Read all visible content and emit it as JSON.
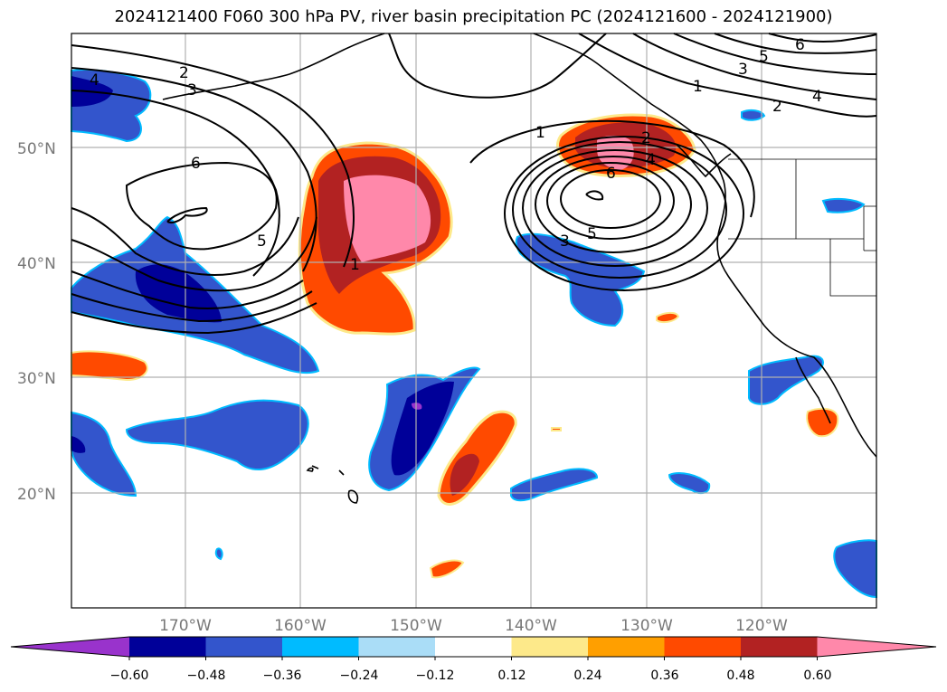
{
  "map": {
    "title": "2024121400 F060 300 hPa PV, river basin precipitation PC (2024121600 - 2024121900)",
    "lat_labels": [
      "50°N",
      "40°N",
      "30°N",
      "20°N"
    ],
    "lon_labels": [
      "170°W",
      "160°W",
      "150°W",
      "140°W",
      "130°W",
      "120°W"
    ],
    "contour_labels": [
      "4",
      "2",
      "3",
      "6",
      "5",
      "1",
      "1",
      "2",
      "4",
      "6",
      "3",
      "5",
      "6",
      "5",
      "3",
      "1",
      "2",
      "4"
    ],
    "colorbar": {
      "ticks": [
        "−0.60",
        "−0.48",
        "−0.36",
        "−0.24",
        "−0.12",
        "0.12",
        "0.24",
        "0.36",
        "0.48",
        "0.60"
      ],
      "colors": [
        "#9933cc",
        "#000099",
        "#3355cc",
        "#00bbff",
        "#aaddf7",
        "#ffffff",
        "#fde98a",
        "#ff9f00",
        "#ff4a00",
        "#b22222",
        "#ff88aa"
      ]
    }
  }
}
